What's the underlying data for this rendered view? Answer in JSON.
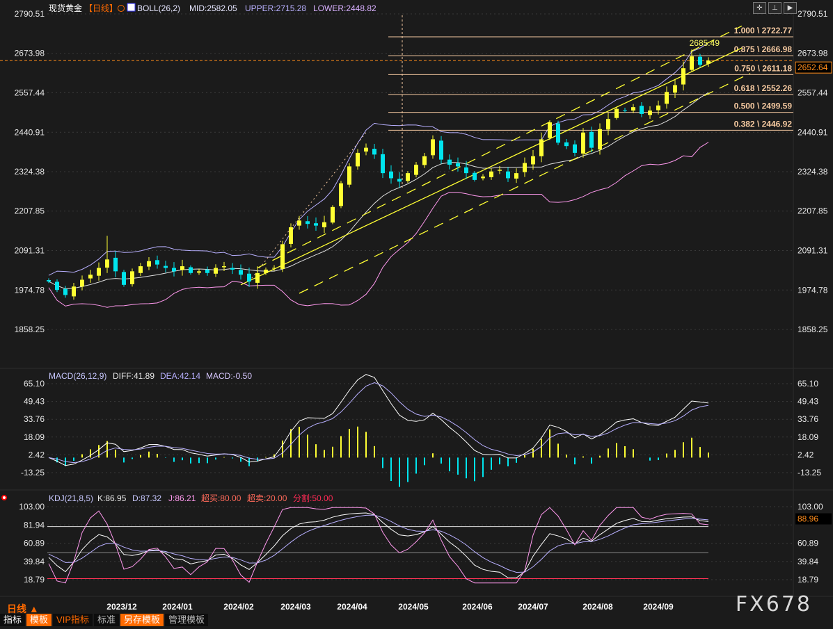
{
  "header": {
    "symbol": "现货黄金",
    "period": "【日线】",
    "boll_label": "BOLL(26,2)",
    "mid": "MID:2582.05",
    "upper": "UPPER:2715.28",
    "lower": "LOWER:2448.82"
  },
  "macd_header": {
    "label": "MACD(26,12,9)",
    "diff": "DIFF:41.89",
    "dea": "DEA:42.14",
    "macd": "MACD:-0.50"
  },
  "kdj_header": {
    "label": "KDJ(21,8,5)",
    "k": "K:86.95",
    "d": "D:87.32",
    "j": "J:86.21",
    "overbought": "超买:80.00",
    "oversold": "超卖:20.00",
    "split": "分割:50.00"
  },
  "toolbar_icons": [
    "crosshair-icon",
    "zoom-range-icon",
    "play-forward-icon",
    "exit-icon"
  ],
  "bottom_bar": {
    "period_label": "日线 ▲",
    "tabs": [
      "指标",
      "模板",
      "VIP指标",
      "标准",
      "另存模板",
      "管理模板"
    ]
  },
  "watermark": "FX678",
  "colors": {
    "up": "#ffff33",
    "down": "#00e5ee",
    "fib": "#f5c9a0",
    "price_line": "#ff8c1a",
    "boll_upper": "#b8b0ff",
    "boll_mid": "#e0e0e0",
    "boll_lower": "#ff99ee"
  },
  "chart_data": [
    {
      "type": "candlestick",
      "title": "现货黄金 日线",
      "y_ticks": [
        "2790.51",
        "2673.98",
        "2557.44",
        "2440.91",
        "2324.38",
        "2207.85",
        "2091.31",
        "1974.78",
        "1858.25"
      ],
      "ylim": [
        1858.25,
        2790.51
      ],
      "x_ticks": [
        "2023/12",
        "2024/01",
        "2024/02",
        "2024/03",
        "2024/04",
        "2024/05",
        "2024/06",
        "2024/07",
        "2024/08",
        "2024/09"
      ],
      "closes": [
        2000,
        1975,
        1960,
        1985,
        2005,
        2020,
        2040,
        2065,
        2030,
        1990,
        2030,
        2045,
        2060,
        2050,
        2040,
        2030,
        2045,
        2025,
        2030,
        2025,
        2040,
        2045,
        2035,
        2020,
        2000,
        2025,
        2035,
        2040,
        2110,
        2160,
        2180,
        2170,
        2165,
        2175,
        2220,
        2290,
        2340,
        2380,
        2395,
        2375,
        2320,
        2305,
        2295,
        2320,
        2345,
        2370,
        2420,
        2360,
        2345,
        2340,
        2320,
        2300,
        2310,
        2325,
        2330,
        2305,
        2320,
        2350,
        2370,
        2420,
        2470,
        2410,
        2400,
        2380,
        2440,
        2395,
        2450,
        2480,
        2510,
        2505,
        2515,
        2495,
        2505,
        2520,
        2560,
        2580,
        2630,
        2665,
        2640,
        2652.64
      ],
      "last_price": "2652.64",
      "high_annotation": "2685.49",
      "fibonacci": [
        {
          "level": "1.000",
          "price": 2722.77,
          "label": "1.000 \\ 2722.77"
        },
        {
          "level": "0.875",
          "price": 2666.98,
          "label": "0.875 \\ 2666.98"
        },
        {
          "level": "0.750",
          "price": 2611.18,
          "label": "0.750 \\ 2611.18"
        },
        {
          "level": "0.618",
          "price": 2552.26,
          "label": "0.618 \\ 2552.26"
        },
        {
          "level": "0.500",
          "price": 2499.59,
          "label": "0.500 \\ 2499.59"
        },
        {
          "level": "0.382",
          "price": 2446.92,
          "label": "0.382 \\ 2446.92"
        }
      ],
      "trendlines": [
        {
          "from": [
            25,
            2040
          ],
          "to": [
            83,
            2755
          ],
          "style": "dashed"
        },
        {
          "from": [
            23,
            1990
          ],
          "to": [
            83,
            2690
          ],
          "style": "solid"
        },
        {
          "from": [
            30,
            1965
          ],
          "to": [
            84,
            2615
          ],
          "style": "dashed"
        }
      ]
    },
    {
      "type": "line+bar",
      "title": "MACD(26,12,9)",
      "y_ticks": [
        "65.10",
        "49.43",
        "33.76",
        "18.09",
        "2.42",
        "-13.25"
      ],
      "ylim": [
        -13.25,
        65.1
      ]
    },
    {
      "type": "line",
      "title": "KDJ(21,8,5)",
      "y_ticks": [
        "103.00",
        "81.94",
        "60.89",
        "39.84",
        "18.79"
      ],
      "ylim": [
        18.79,
        103.0
      ],
      "last_value": "88.96",
      "reference_lines": [
        80,
        50,
        20
      ]
    }
  ]
}
